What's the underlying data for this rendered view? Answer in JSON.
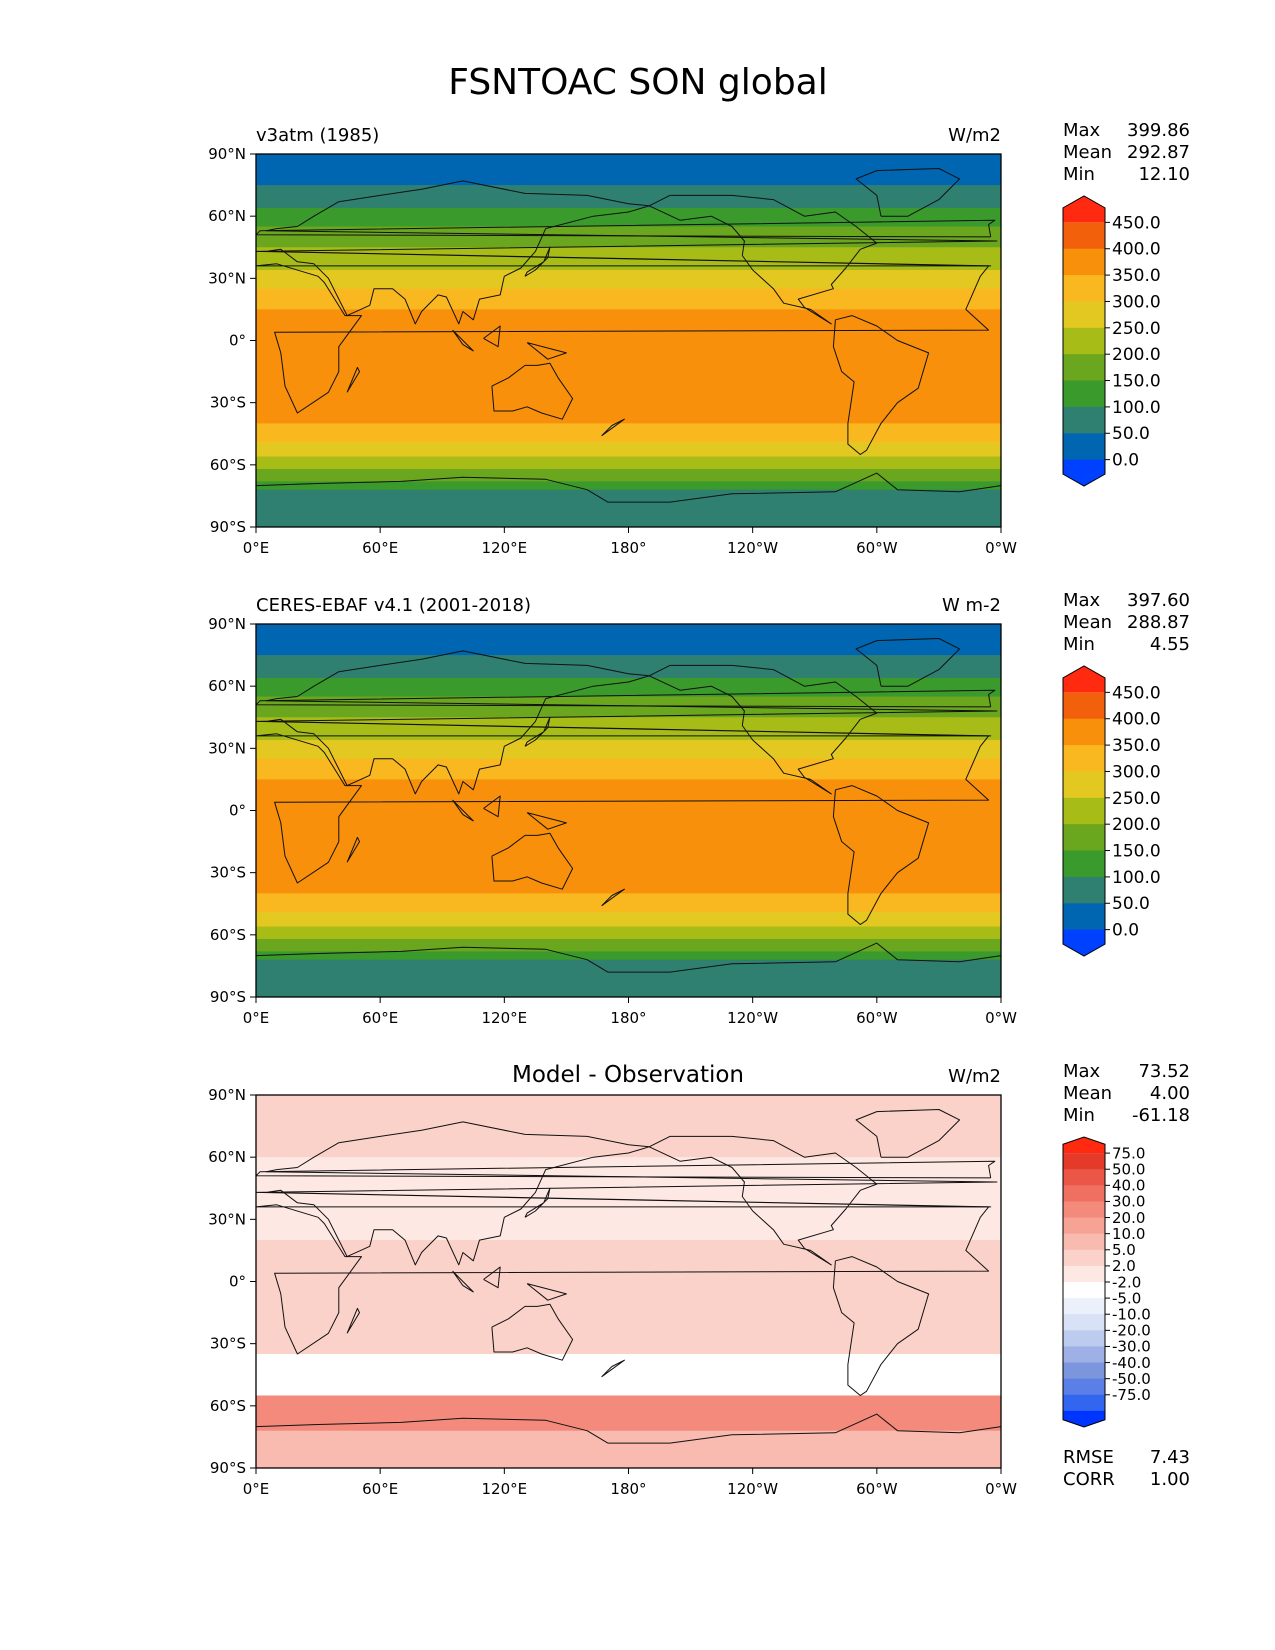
{
  "figure": {
    "title": "FSNTOAC SON global"
  },
  "colors": {
    "abs_levels": [
      "#0040ff",
      "#0066b2",
      "#2f8070",
      "#3a9a2c",
      "#6aa61e",
      "#a8bc18",
      "#e4c822",
      "#f9b820",
      "#f8900c",
      "#f2600c",
      "#ff2a10"
    ],
    "diff_levels": [
      "#0035ff",
      "#3366f0",
      "#5a7fe6",
      "#7c96de",
      "#9fb0e6",
      "#bccbee",
      "#d8e1f6",
      "#ecf0fb",
      "#ffffff",
      "#fde8e4",
      "#fbd2ca",
      "#f9bab0",
      "#f6a396",
      "#f38a7c",
      "#ef7060",
      "#eb5646",
      "#e5392a",
      "#ff2a10"
    ]
  },
  "axis_ticks": {
    "lat": [
      "90°N",
      "60°N",
      "30°N",
      "0°",
      "30°S",
      "60°S",
      "90°S"
    ],
    "lon": [
      "0°E",
      "60°E",
      "120°E",
      "180°",
      "120°W",
      "60°W",
      "0°W"
    ]
  },
  "panels": [
    {
      "left_title": "v3atm (1985)",
      "center_title": "",
      "units": "W/m2",
      "stats": [
        {
          "label": "Max",
          "value": "399.86"
        },
        {
          "label": "Mean",
          "value": "292.87"
        },
        {
          "label": "Min",
          "value": "12.10"
        }
      ],
      "colorbar_labels": [
        "450.0",
        "400.0",
        "350.0",
        "300.0",
        "250.0",
        "200.0",
        "150.0",
        "100.0",
        "50.0",
        "0.0"
      ]
    },
    {
      "left_title": "CERES-EBAF v4.1 (2001-2018)",
      "center_title": "",
      "units": "W m-2",
      "stats": [
        {
          "label": "Max",
          "value": "397.60"
        },
        {
          "label": "Mean",
          "value": "288.87"
        },
        {
          "label": "Min",
          "value": "4.55"
        }
      ],
      "colorbar_labels": [
        "450.0",
        "400.0",
        "350.0",
        "300.0",
        "250.0",
        "200.0",
        "150.0",
        "100.0",
        "50.0",
        "0.0"
      ]
    },
    {
      "left_title": "",
      "center_title": "Model - Observation",
      "units": "W/m2",
      "stats": [
        {
          "label": "Max",
          "value": "73.52"
        },
        {
          "label": "Mean",
          "value": "4.00"
        },
        {
          "label": "Min",
          "value": "-61.18"
        }
      ],
      "colorbar_labels": [
        "75.0",
        "50.0",
        "40.0",
        "30.0",
        "20.0",
        "10.0",
        "5.0",
        "2.0",
        "-2.0",
        "-5.0",
        "-10.0",
        "-20.0",
        "-30.0",
        "-40.0",
        "-50.0",
        "-75.0"
      ],
      "footer_stats": [
        {
          "label": "RMSE",
          "value": "7.43"
        },
        {
          "label": "CORR",
          "value": "1.00"
        }
      ]
    }
  ],
  "chart_data": [
    {
      "type": "heatmap",
      "title": "v3atm (1985)",
      "units": "W/m2",
      "xlim": [
        0,
        360
      ],
      "ylim": [
        -90,
        90
      ],
      "zonal_bands": [
        {
          "lat": [
            75,
            90
          ],
          "value": 25
        },
        {
          "lat": [
            64,
            75
          ],
          "value": 75
        },
        {
          "lat": [
            55,
            64
          ],
          "value": 125
        },
        {
          "lat": [
            45,
            55
          ],
          "value": 175
        },
        {
          "lat": [
            34,
            45
          ],
          "value": 225
        },
        {
          "lat": [
            25,
            34
          ],
          "value": 275
        },
        {
          "lat": [
            15,
            25
          ],
          "value": 325
        },
        {
          "lat": [
            -40,
            15
          ],
          "value": 375
        },
        {
          "lat": [
            -49,
            -40
          ],
          "value": 325
        },
        {
          "lat": [
            -56,
            -49
          ],
          "value": 275
        },
        {
          "lat": [
            -62,
            -56
          ],
          "value": 225
        },
        {
          "lat": [
            -68,
            -62
          ],
          "value": 175
        },
        {
          "lat": [
            -72,
            -68
          ],
          "value": 125
        },
        {
          "lat": [
            -90,
            -72
          ],
          "value": 75
        }
      ],
      "levels": [
        0,
        50,
        100,
        150,
        200,
        250,
        300,
        350,
        400,
        450
      ],
      "stats": {
        "max": 399.86,
        "mean": 292.87,
        "min": 12.1
      }
    },
    {
      "type": "heatmap",
      "title": "CERES-EBAF v4.1 (2001-2018)",
      "units": "W m-2",
      "xlim": [
        0,
        360
      ],
      "ylim": [
        -90,
        90
      ],
      "zonal_bands": [
        {
          "lat": [
            75,
            90
          ],
          "value": 25
        },
        {
          "lat": [
            64,
            75
          ],
          "value": 75
        },
        {
          "lat": [
            55,
            64
          ],
          "value": 125
        },
        {
          "lat": [
            45,
            55
          ],
          "value": 175
        },
        {
          "lat": [
            34,
            45
          ],
          "value": 225
        },
        {
          "lat": [
            25,
            34
          ],
          "value": 275
        },
        {
          "lat": [
            15,
            25
          ],
          "value": 325
        },
        {
          "lat": [
            -40,
            15
          ],
          "value": 375
        },
        {
          "lat": [
            -49,
            -40
          ],
          "value": 325
        },
        {
          "lat": [
            -56,
            -49
          ],
          "value": 275
        },
        {
          "lat": [
            -62,
            -56
          ],
          "value": 225
        },
        {
          "lat": [
            -68,
            -62
          ],
          "value": 175
        },
        {
          "lat": [
            -72,
            -68
          ],
          "value": 125
        },
        {
          "lat": [
            -90,
            -72
          ],
          "value": 75
        }
      ],
      "levels": [
        0,
        50,
        100,
        150,
        200,
        250,
        300,
        350,
        400,
        450
      ],
      "stats": {
        "max": 397.6,
        "mean": 288.87,
        "min": 4.55
      }
    },
    {
      "type": "heatmap",
      "title": "Model - Observation",
      "units": "W/m2",
      "xlim": [
        0,
        360
      ],
      "ylim": [
        -90,
        90
      ],
      "zonal_bands": [
        {
          "lat": [
            80,
            90
          ],
          "value": 6
        },
        {
          "lat": [
            60,
            80
          ],
          "value": 7
        },
        {
          "lat": [
            20,
            60
          ],
          "value": 4
        },
        {
          "lat": [
            -35,
            20
          ],
          "value": 6
        },
        {
          "lat": [
            -55,
            -35
          ],
          "value": 0
        },
        {
          "lat": [
            -72,
            -55
          ],
          "value": 30
        },
        {
          "lat": [
            -90,
            -72
          ],
          "value": 12
        }
      ],
      "levels": [
        -75,
        -50,
        -40,
        -30,
        -20,
        -10,
        -5,
        -2,
        2,
        5,
        10,
        20,
        30,
        40,
        50,
        75
      ],
      "stats": {
        "max": 73.52,
        "mean": 4.0,
        "min": -61.18,
        "rmse": 7.43,
        "corr": 1.0
      }
    }
  ]
}
